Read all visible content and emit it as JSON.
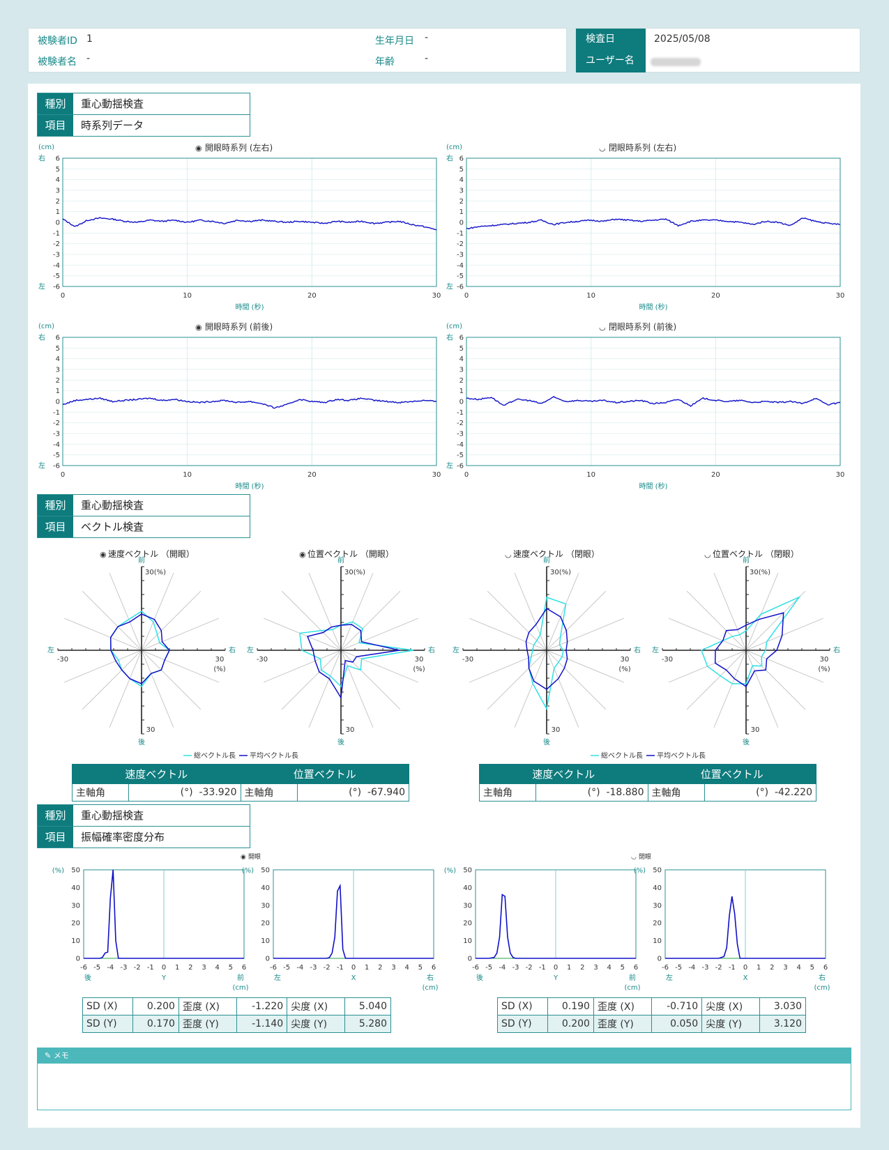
{
  "header": {
    "subject_id_label": "被験者ID",
    "subject_id": "1",
    "subject_name_label": "被験者名",
    "subject_name": "-",
    "birthdate_label": "生年月日",
    "birthdate": "-",
    "age_label": "年齢",
    "age": "-",
    "exam_date_label": "検査日",
    "exam_date": "2025/05/08",
    "user_name_label": "ユーザー名",
    "user_name": ""
  },
  "sections": [
    {
      "kind_label": "種別",
      "kind": "重心動揺検査",
      "item_label": "項目",
      "item": "時系列データ"
    },
    {
      "kind_label": "種別",
      "kind": "重心動揺検査",
      "item_label": "項目",
      "item": "ベクトル検査"
    },
    {
      "kind_label": "種別",
      "kind": "重心動揺検査",
      "item_label": "項目",
      "item": "振幅確率密度分布"
    }
  ],
  "timeseries": {
    "unit": "(cm)",
    "xlabel": "時間 (秒)",
    "right_label": "右",
    "left_label": "左",
    "charts": [
      {
        "title": "開眼時系列 (左右)",
        "eye": "open"
      },
      {
        "title": "閉眼時系列 (左右)",
        "eye": "closed"
      },
      {
        "title": "開眼時系列 (前後)",
        "eye": "open"
      },
      {
        "title": "閉眼時系列 (前後)",
        "eye": "closed"
      }
    ]
  },
  "vector": {
    "axis": {
      "front": "前",
      "back": "後",
      "left": "左",
      "right": "右",
      "top": "30(%)",
      "right_val": "30",
      "right_unit": "(%)",
      "left_val": "-30",
      "bottom": "30"
    },
    "legend": {
      "total": "総ベクトル長",
      "avg": "平均ベクトル長"
    },
    "charts": [
      {
        "title": "速度ベクトル （開眼）",
        "eye": "open"
      },
      {
        "title": "位置ベクトル （開眼）",
        "eye": "open"
      },
      {
        "title": "速度ベクトル （閉眼）",
        "eye": "closed"
      },
      {
        "title": "位置ベクトル （閉眼）",
        "eye": "closed"
      }
    ],
    "tables": [
      {
        "velocity_header": "速度ベクトル",
        "position_header": "位置ベクトル",
        "angle_label": "主軸角",
        "unit": "(°)",
        "velocity_angle": "-33.920",
        "position_angle": "-67.940"
      },
      {
        "velocity_header": "速度ベクトル",
        "position_header": "位置ベクトル",
        "angle_label": "主軸角",
        "unit": "(°)",
        "velocity_angle": "-18.880",
        "position_angle": "-42.220"
      }
    ]
  },
  "amplitude": {
    "open_title": "開眼",
    "closed_title": "閉眼",
    "unit": "(%)",
    "cm_unit": "(cm)",
    "y_axis_label": "Y",
    "x_axis_label": "X",
    "back": "後",
    "front": "前",
    "left": "左",
    "right": "右",
    "stats": [
      {
        "sdx_label": "SD (X)",
        "sdx": "0.200",
        "skx_label": "歪度 (X)",
        "skx": "-1.220",
        "kux_label": "尖度 (X)",
        "kux": "5.040",
        "sdy_label": "SD (Y)",
        "sdy": "0.170",
        "sky_label": "歪度 (Y)",
        "sky": "-1.140",
        "kuy_label": "尖度 (Y)",
        "kuy": "5.280"
      },
      {
        "sdx_label": "SD (X)",
        "sdx": "0.190",
        "skx_label": "歪度 (X)",
        "skx": "-0.710",
        "kux_label": "尖度 (X)",
        "kux": "3.030",
        "sdy_label": "SD (Y)",
        "sdy": "0.200",
        "sky_label": "歪度 (Y)",
        "sky": "0.050",
        "kuy_label": "尖度 (Y)",
        "kuy": "3.120"
      }
    ]
  },
  "memo": {
    "label": "メモ"
  },
  "colors": {
    "teal": "#0e7b7d",
    "line": "#1010c8",
    "cyan": "#2fe0e6"
  },
  "chart_data": [
    {
      "type": "line",
      "title": "開眼時系列 (左右)",
      "xlabel": "時間 (秒)",
      "ylabel": "(cm)",
      "xlim": [
        0,
        30
      ],
      "ylim": [
        -6,
        6
      ],
      "x": [
        0,
        1,
        2,
        3,
        4,
        5,
        6,
        7,
        8,
        9,
        10,
        11,
        12,
        13,
        14,
        15,
        16,
        17,
        18,
        19,
        20,
        21,
        22,
        23,
        24,
        25,
        26,
        27,
        28,
        29,
        30
      ],
      "values": [
        0.3,
        -0.4,
        0.2,
        0.4,
        0.3,
        0.1,
        0.0,
        0.2,
        0.1,
        0.2,
        0.0,
        0.2,
        0.1,
        -0.1,
        0.2,
        0.1,
        0.2,
        0.1,
        0.0,
        0.1,
        0.0,
        -0.1,
        0.1,
        0.0,
        0.1,
        -0.1,
        0.0,
        0.1,
        -0.2,
        -0.4,
        -0.7
      ]
    },
    {
      "type": "line",
      "title": "閉眼時系列 (左右)",
      "xlabel": "時間 (秒)",
      "ylabel": "(cm)",
      "xlim": [
        0,
        30
      ],
      "ylim": [
        -6,
        6
      ],
      "x": [
        0,
        1,
        2,
        3,
        4,
        5,
        6,
        7,
        8,
        9,
        10,
        11,
        12,
        13,
        14,
        15,
        16,
        17,
        18,
        19,
        20,
        21,
        22,
        23,
        24,
        25,
        26,
        27,
        28,
        29,
        30
      ],
      "values": [
        -0.6,
        -0.4,
        -0.3,
        -0.2,
        -0.1,
        0.0,
        0.2,
        -0.2,
        0.0,
        0.1,
        0.2,
        0.1,
        0.3,
        0.2,
        0.1,
        0.2,
        0.3,
        -0.3,
        0.1,
        0.2,
        0.2,
        0.1,
        0.0,
        -0.2,
        0.1,
        0.0,
        -0.3,
        0.4,
        0.1,
        -0.1,
        -0.2
      ]
    },
    {
      "type": "line",
      "title": "開眼時系列 (前後)",
      "xlabel": "時間 (秒)",
      "ylabel": "(cm)",
      "xlim": [
        0,
        30
      ],
      "ylim": [
        -6,
        6
      ],
      "x": [
        0,
        1,
        2,
        3,
        4,
        5,
        6,
        7,
        8,
        9,
        10,
        11,
        12,
        13,
        14,
        15,
        16,
        17,
        18,
        19,
        20,
        21,
        22,
        23,
        24,
        25,
        26,
        27,
        28,
        29,
        30
      ],
      "values": [
        -0.3,
        0.1,
        0.2,
        0.3,
        0.0,
        0.1,
        0.2,
        0.3,
        0.1,
        0.2,
        0.0,
        -0.1,
        0.0,
        0.1,
        -0.1,
        0.0,
        -0.2,
        -0.6,
        -0.3,
        0.2,
        0.0,
        -0.1,
        0.2,
        0.1,
        0.3,
        0.1,
        0.0,
        -0.1,
        0.0,
        0.1,
        0.0
      ]
    },
    {
      "type": "line",
      "title": "閉眼時系列 (前後)",
      "xlabel": "時間 (秒)",
      "ylabel": "(cm)",
      "xlim": [
        0,
        30
      ],
      "ylim": [
        -6,
        6
      ],
      "x": [
        0,
        1,
        2,
        3,
        4,
        5,
        6,
        7,
        8,
        9,
        10,
        11,
        12,
        13,
        14,
        15,
        16,
        17,
        18,
        19,
        20,
        21,
        22,
        23,
        24,
        25,
        26,
        27,
        28,
        29,
        30
      ],
      "values": [
        0.3,
        0.2,
        0.4,
        -0.4,
        0.2,
        0.1,
        -0.2,
        0.4,
        0.0,
        0.1,
        0.0,
        0.1,
        -0.1,
        0.0,
        0.1,
        -0.2,
        -0.1,
        0.2,
        -0.4,
        0.3,
        0.1,
        0.0,
        0.1,
        -0.1,
        0.0,
        -0.1,
        0.0,
        -0.2,
        0.3,
        -0.3,
        -0.1
      ]
    },
    {
      "type": "radar",
      "title": "速度ベクトル （開眼）",
      "directions": 16,
      "range": [
        0,
        30
      ],
      "series": [
        {
          "name": "総ベクトル長",
          "values": [
            14,
            11,
            8,
            7,
            10,
            9,
            10,
            9,
            13,
            11,
            10,
            9,
            11,
            12,
            12,
            12
          ]
        },
        {
          "name": "平均ベクトル長",
          "values": [
            13,
            12,
            10,
            8,
            10,
            9,
            10,
            9,
            12,
            11,
            10,
            10,
            11,
            12,
            12,
            11
          ]
        }
      ]
    },
    {
      "type": "radar",
      "title": "位置ベクトル （開眼）",
      "directions": 16,
      "range": [
        0,
        30
      ],
      "series": [
        {
          "name": "総ベクトル長",
          "values": [
            9,
            11,
            11,
            7,
            26,
            8,
            10,
            6,
            13,
            10,
            10,
            8,
            14,
            16,
            10,
            8
          ]
        },
        {
          "name": "平均ベクトル長",
          "values": [
            9,
            10,
            10,
            8,
            21,
            6,
            6,
            4,
            17,
            11,
            11,
            10,
            10,
            13,
            9,
            9
          ]
        }
      ]
    },
    {
      "type": "radar",
      "title": "速度ベクトル （閉眼）",
      "directions": 16,
      "range": [
        0,
        30
      ],
      "series": [
        {
          "name": "総ベクトル長",
          "values": [
            19,
            18,
            7,
            5,
            6,
            6,
            6,
            7,
            21,
            13,
            9,
            6,
            5,
            5,
            5,
            6
          ]
        },
        {
          "name": "平均ベクトル長",
          "values": [
            15,
            13,
            10,
            8,
            7,
            8,
            9,
            11,
            14,
            12,
            9,
            7,
            7,
            8,
            9,
            10
          ]
        }
      ]
    },
    {
      "type": "radar",
      "title": "位置ベクトル （閉眼）",
      "directions": 16,
      "range": [
        0,
        30
      ],
      "series": [
        {
          "name": "総ベクトル長",
          "values": [
            7,
            14,
            27,
            8,
            7,
            6,
            8,
            6,
            12,
            13,
            13,
            15,
            16,
            9,
            7,
            6
          ]
        },
        {
          "name": "平均ベクトル長",
          "values": [
            9,
            12,
            19,
            14,
            11,
            8,
            10,
            8,
            13,
            11,
            10,
            12,
            11,
            9,
            10,
            8
          ]
        }
      ]
    },
    {
      "type": "line",
      "title": "開眼 Y",
      "xlim": [
        -6,
        6
      ],
      "ylim": [
        0,
        50
      ],
      "x": [
        -6,
        -5,
        -4.8,
        -4.6,
        -4.4,
        -4.2,
        -4.0,
        -3.8,
        -3.6,
        -3.4,
        -3.2,
        -3,
        0,
        6
      ],
      "values": [
        0,
        0,
        0,
        0.5,
        3,
        3.5,
        34,
        50,
        10,
        0,
        0,
        0,
        0,
        0
      ]
    },
    {
      "type": "line",
      "title": "開眼 X",
      "xlim": [
        -6,
        6
      ],
      "ylim": [
        0,
        50
      ],
      "x": [
        -6,
        -2,
        -1.8,
        -1.6,
        -1.4,
        -1.2,
        -1.0,
        -0.8,
        -0.6,
        -0.4,
        0,
        6
      ],
      "values": [
        0,
        0,
        0.5,
        3,
        12,
        38,
        41,
        5,
        0,
        0,
        0,
        0
      ]
    },
    {
      "type": "line",
      "title": "閉眼 Y",
      "xlim": [
        -6,
        6
      ],
      "ylim": [
        0,
        50
      ],
      "x": [
        -6,
        -5,
        -4.6,
        -4.4,
        -4.2,
        -4.0,
        -3.8,
        -3.6,
        -3.4,
        -3.2,
        -3,
        0,
        6
      ],
      "values": [
        0,
        0,
        0.5,
        3,
        12,
        36,
        35,
        12,
        3,
        0.5,
        0,
        0,
        0
      ]
    },
    {
      "type": "line",
      "title": "閉眼 X",
      "xlim": [
        -6,
        6
      ],
      "ylim": [
        0,
        50
      ],
      "x": [
        -6,
        -2,
        -1.6,
        -1.4,
        -1.2,
        -1.0,
        -0.8,
        -0.6,
        -0.4,
        0,
        6
      ],
      "values": [
        0,
        0,
        1,
        6,
        24,
        35,
        25,
        8,
        0,
        0,
        0
      ]
    }
  ]
}
